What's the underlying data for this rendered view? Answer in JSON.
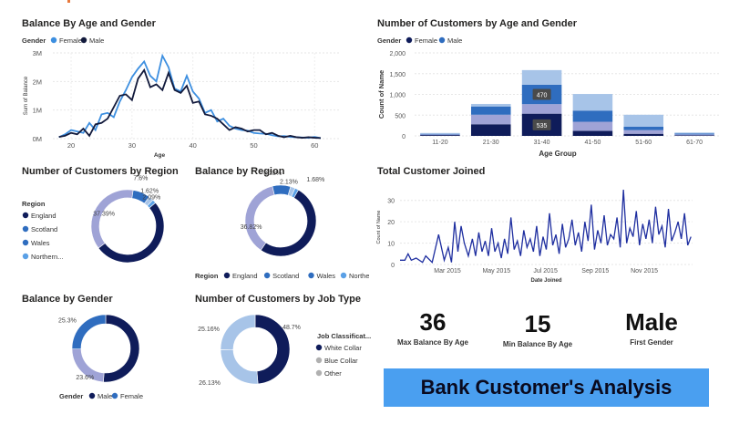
{
  "dashboard": {
    "banner_title": "Bank Customer's Analysis",
    "kpis": [
      {
        "value": "36",
        "label": "Max Balance By Age"
      },
      {
        "value": "15",
        "label": "Min Balance By Age"
      },
      {
        "value": "Male",
        "label": "First Gender"
      }
    ]
  },
  "colors": {
    "navy": "#0f1c5a",
    "blue": "#2f6dbf",
    "light": "#a7c4e8",
    "lavender": "#9fa3d6",
    "sky": "#5aa0e6",
    "line_blue": "#3d8fe0",
    "line_navy": "#121a3c",
    "timeline": "#1f2fa0"
  },
  "chart_data": [
    {
      "id": "balance_by_age_gender",
      "type": "line",
      "title": "Balance By Age and Gender",
      "legend_title": "Gender",
      "xlabel": "Age",
      "ylabel": "Sum of Balance",
      "xlim": [
        17,
        64
      ],
      "ylim": [
        0,
        3000000
      ],
      "xticks": [
        20,
        30,
        40,
        50,
        60
      ],
      "yticks": [
        "0M",
        "1M",
        "2M",
        "3M"
      ],
      "x": [
        18,
        19,
        20,
        21,
        22,
        23,
        24,
        25,
        26,
        27,
        28,
        29,
        30,
        31,
        32,
        33,
        34,
        35,
        36,
        37,
        38,
        39,
        40,
        41,
        42,
        43,
        44,
        45,
        46,
        47,
        48,
        49,
        50,
        51,
        52,
        53,
        54,
        55,
        56,
        57,
        58,
        59,
        60,
        61
      ],
      "series": [
        {
          "name": "Female",
          "values": [
            50000,
            150000,
            300000,
            250000,
            200000,
            550000,
            300000,
            850000,
            900000,
            750000,
            1300000,
            1700000,
            2150000,
            2450000,
            2700000,
            2200000,
            2000000,
            2900000,
            2500000,
            1750000,
            1650000,
            2200000,
            1650000,
            1400000,
            900000,
            1000000,
            600000,
            700000,
            450000,
            350000,
            300000,
            280000,
            200000,
            180000,
            170000,
            120000,
            80000,
            90000,
            60000,
            50000,
            40000,
            30000,
            60000,
            20000
          ]
        },
        {
          "name": "Male",
          "values": [
            60000,
            100000,
            200000,
            150000,
            350000,
            100000,
            500000,
            550000,
            700000,
            1100000,
            1500000,
            1550000,
            1350000,
            2100000,
            2400000,
            1800000,
            1900000,
            1700000,
            2300000,
            1700000,
            1600000,
            1850000,
            1250000,
            1300000,
            850000,
            800000,
            700000,
            500000,
            300000,
            400000,
            350000,
            250000,
            300000,
            300000,
            150000,
            200000,
            100000,
            50000,
            100000,
            50000,
            30000,
            50000,
            30000,
            20000
          ]
        }
      ]
    },
    {
      "id": "customers_by_age_group",
      "type": "bar",
      "title": "Number of Customers by Age and Gender",
      "legend_title": "Gender",
      "legend": [
        "Female",
        "Male"
      ],
      "xlabel": "Age Group",
      "ylabel": "Count of Name",
      "ylim": [
        0,
        2000
      ],
      "yticks": [
        "0",
        "500",
        "1,000",
        "1,500",
        "2,000"
      ],
      "categories": [
        "11-20",
        "21-30",
        "31-40",
        "41-50",
        "51-60",
        "61-70"
      ],
      "segments": [
        [
          20,
          15,
          15,
          20
        ],
        [
          280,
          230,
          200,
          60
        ],
        [
          535,
          230,
          470,
          350
        ],
        [
          120,
          220,
          270,
          400
        ],
        [
          50,
          90,
          80,
          290
        ],
        [
          15,
          20,
          20,
          25
        ]
      ],
      "data_labels": [
        {
          "category": "31-40",
          "segment": 0,
          "value": "535"
        },
        {
          "category": "31-40",
          "segment": 2,
          "value": "470"
        }
      ]
    },
    {
      "id": "customers_by_region",
      "type": "pie",
      "title": "Number of Customers by Region",
      "legend_title": "Region",
      "legend": [
        "England",
        "Scotland",
        "Wales",
        "Northern..."
      ],
      "values": [
        50.39,
        37.39,
        7.6,
        2.09,
        1.62
      ],
      "labels": [
        "",
        "37.39%",
        "7.6%",
        "2.09%",
        "1.62%"
      ]
    },
    {
      "id": "balance_by_region",
      "type": "pie",
      "title": "Balance by Region",
      "legend_title": "Region",
      "legend": [
        "England",
        "Scotland",
        "Wales",
        "Norther..."
      ],
      "values": [
        51.09,
        36.82,
        8.28,
        2.13,
        1.68
      ],
      "labels": [
        "",
        "36.82%",
        "8.28%",
        "2.13%",
        "1.68%"
      ]
    },
    {
      "id": "total_customer_joined",
      "type": "line",
      "title": "Total Customer Joined",
      "xlabel": "Date Joined",
      "ylabel": "Count of Name",
      "ylim": [
        0,
        35
      ],
      "yticks": [
        0,
        10,
        20,
        30
      ],
      "xticks": [
        "Mar 2015",
        "May 2015",
        "Jul 2015",
        "Sep 2015",
        "Nov 2015"
      ],
      "x_start": "2015-01-01",
      "x_end": "2015-12-31",
      "days": [
        0,
        6,
        10,
        14,
        20,
        28,
        32,
        40,
        48,
        55,
        60,
        64,
        68,
        72,
        76,
        80,
        85,
        90,
        94,
        98,
        102,
        106,
        110,
        114,
        118,
        122,
        126,
        130,
        134,
        138,
        142,
        146,
        150,
        154,
        158,
        162,
        166,
        170,
        174,
        178,
        182,
        186,
        190,
        194,
        198,
        202,
        206,
        210,
        214,
        218,
        222,
        226,
        230,
        234,
        238,
        242,
        246,
        250,
        254,
        258,
        262,
        266,
        270,
        274,
        278,
        282,
        286,
        290,
        294,
        298,
        302,
        306,
        310,
        314,
        318,
        322,
        326,
        330,
        334,
        338,
        342,
        346,
        350,
        354,
        358,
        362
      ],
      "values": [
        2,
        2,
        5,
        2,
        3,
        1,
        4,
        1,
        14,
        2,
        8,
        1,
        20,
        6,
        18,
        10,
        4,
        12,
        4,
        15,
        6,
        11,
        4,
        17,
        6,
        10,
        3,
        12,
        5,
        22,
        7,
        11,
        4,
        16,
        8,
        12,
        6,
        18,
        4,
        13,
        7,
        24,
        9,
        14,
        5,
        19,
        8,
        12,
        21,
        9,
        15,
        6,
        20,
        11,
        28,
        7,
        16,
        10,
        23,
        9,
        14,
        12,
        22,
        8,
        35,
        10,
        17,
        13,
        25,
        9,
        19,
        12,
        21,
        10,
        27,
        14,
        18,
        8,
        26,
        11,
        15,
        20,
        12,
        24,
        9,
        13
      ]
    },
    {
      "id": "balance_by_gender",
      "type": "pie",
      "title": "Balance by Gender",
      "legend_title": "Gender",
      "legend": [
        "Male",
        "Female"
      ],
      "values": [
        51.1,
        23.6,
        25.3
      ],
      "labels": [
        "",
        "23.6%",
        "25.3%"
      ]
    },
    {
      "id": "customers_by_job_type",
      "type": "pie",
      "title": "Number of Customers by Job Type",
      "legend_title": "Job Classificat...",
      "legend": [
        "White Collar",
        "Blue Collar",
        "Other"
      ],
      "values": [
        48.7,
        26.13,
        25.16
      ],
      "labels": [
        "48.7%",
        "26.13%",
        "25.16%"
      ]
    }
  ]
}
